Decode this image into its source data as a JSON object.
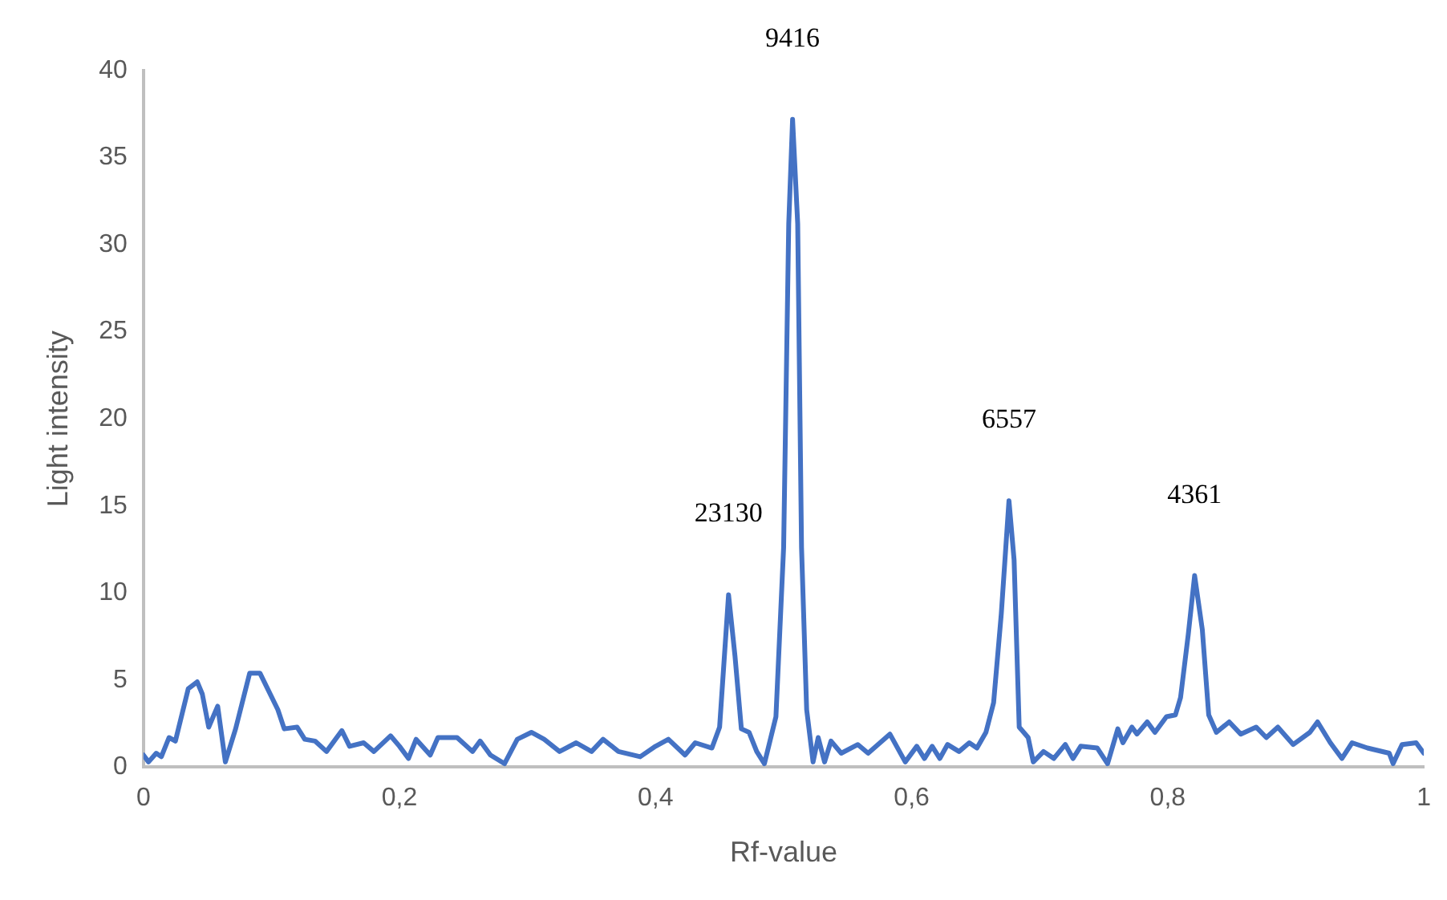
{
  "chart_data": {
    "type": "line",
    "xlabel": "Rf-value",
    "ylabel": "Light intensity",
    "x": [
      0,
      0.004,
      0.01,
      0.014,
      0.02,
      0.025,
      0.035,
      0.042,
      0.046,
      0.051,
      0.058,
      0.064,
      0.072,
      0.083,
      0.091,
      0.105,
      0.11,
      0.12,
      0.126,
      0.134,
      0.143,
      0.155,
      0.161,
      0.172,
      0.18,
      0.193,
      0.2,
      0.207,
      0.213,
      0.224,
      0.23,
      0.245,
      0.257,
      0.263,
      0.271,
      0.282,
      0.292,
      0.303,
      0.313,
      0.325,
      0.338,
      0.35,
      0.359,
      0.371,
      0.388,
      0.4,
      0.41,
      0.423,
      0.431,
      0.444,
      0.45,
      0.457,
      0.462,
      0.467,
      0.473,
      0.479,
      0.485,
      0.494,
      0.5,
      0.504,
      0.507,
      0.511,
      0.514,
      0.518,
      0.523,
      0.527,
      0.532,
      0.537,
      0.545,
      0.558,
      0.566,
      0.583,
      0.595,
      0.604,
      0.61,
      0.616,
      0.622,
      0.628,
      0.637,
      0.645,
      0.651,
      0.658,
      0.664,
      0.67,
      0.676,
      0.68,
      0.684,
      0.691,
      0.695,
      0.703,
      0.711,
      0.72,
      0.726,
      0.732,
      0.745,
      0.753,
      0.761,
      0.765,
      0.772,
      0.776,
      0.784,
      0.79,
      0.799,
      0.806,
      0.81,
      0.816,
      0.821,
      0.827,
      0.832,
      0.838,
      0.848,
      0.857,
      0.869,
      0.877,
      0.886,
      0.898,
      0.911,
      0.917,
      0.927,
      0.936,
      0.944,
      0.956,
      0.973,
      0.976,
      0.983,
      0.994,
      1
    ],
    "series": [
      {
        "color": "#4472c4",
        "values": [
          0.7,
          0.3,
          0.8,
          0.6,
          1.7,
          1.5,
          4.5,
          4.9,
          4.2,
          2.3,
          3.5,
          0.3,
          2.2,
          5.4,
          5.4,
          3.3,
          2.2,
          2.3,
          1.6,
          1.5,
          0.9,
          2.1,
          1.2,
          1.4,
          0.9,
          1.8,
          1.2,
          0.5,
          1.6,
          0.7,
          1.7,
          1.7,
          0.9,
          1.5,
          0.7,
          0.2,
          1.6,
          2,
          1.6,
          0.9,
          1.4,
          0.9,
          1.6,
          0.9,
          0.6,
          1.2,
          1.6,
          0.7,
          1.4,
          1.1,
          2.3,
          9.9,
          6.4,
          2.2,
          2,
          0.9,
          0.2,
          2.9,
          12.6,
          31.2,
          37.2,
          31.2,
          12.6,
          3.3,
          0.3,
          1.7,
          0.3,
          1.5,
          0.8,
          1.3,
          0.8,
          1.9,
          0.3,
          1.2,
          0.5,
          1.2,
          0.5,
          1.3,
          0.9,
          1.4,
          1.1,
          2,
          3.7,
          8.8,
          15.3,
          11.9,
          2.3,
          1.7,
          0.3,
          0.9,
          0.5,
          1.3,
          0.5,
          1.2,
          1.1,
          0.2,
          2.2,
          1.4,
          2.3,
          1.9,
          2.6,
          2,
          2.9,
          3,
          4,
          7.6,
          11,
          7.9,
          3,
          2,
          2.6,
          1.9,
          2.3,
          1.7,
          2.3,
          1.3,
          2,
          2.6,
          1.4,
          0.5,
          1.4,
          1.1,
          0.8,
          0.2,
          1.3,
          1.4,
          0.8
        ]
      }
    ],
    "xlim": [
      0,
      1
    ],
    "xticks": [
      0,
      {
        "value": 0.2,
        "label": "0,2"
      },
      {
        "value": 0.4,
        "label": "0,4"
      },
      {
        "value": 0.6,
        "label": "0,6"
      },
      {
        "value": 0.8,
        "label": "0,8"
      },
      1
    ],
    "ylim": [
      0,
      40
    ],
    "yticks": [
      0,
      5,
      10,
      15,
      20,
      25,
      30,
      35,
      40
    ],
    "annotations": [
      {
        "text": "23130",
        "x": 0.457,
        "y": 9.9
      },
      {
        "text": "9416",
        "x": 0.507,
        "y": 37.2
      },
      {
        "text": "6557",
        "x": 0.676,
        "y": 15.3
      },
      {
        "text": "4361",
        "x": 0.821,
        "y": 11
      }
    ],
    "grid": false,
    "legend": false,
    "marker": "none",
    "line_style": "solid"
  }
}
